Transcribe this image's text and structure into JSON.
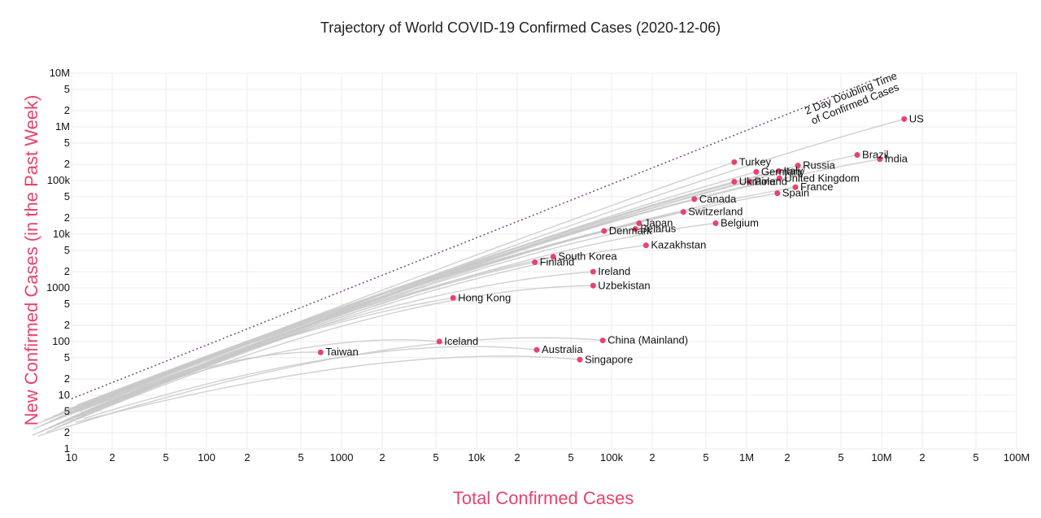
{
  "chart_data": {
    "type": "scatter",
    "title": "Trajectory of World COVID-19 Confirmed Cases (2020-12-06)",
    "xlabel": "Total Confirmed Cases",
    "ylabel": "New Confirmed Cases (in the Past Week)",
    "xscale": "log",
    "yscale": "log",
    "xlim": [
      10,
      100000000
    ],
    "ylim": [
      1,
      10000000
    ],
    "grid": true,
    "x_ticks": [
      "10",
      "2",
      "5",
      "100",
      "2",
      "5",
      "1000",
      "2",
      "5",
      "10k",
      "2",
      "5",
      "100k",
      "2",
      "5",
      "1M",
      "2",
      "5",
      "10M",
      "2",
      "5",
      "100M"
    ],
    "y_ticks": [
      "1",
      "2",
      "5",
      "10",
      "2",
      "5",
      "100",
      "2",
      "5",
      "1000",
      "2",
      "5",
      "10k",
      "2",
      "5",
      "100k",
      "2",
      "5",
      "1M",
      "2",
      "5",
      "10M"
    ],
    "reference_line": {
      "label_line1": "2 Day Doubling Time",
      "label_line2": "of Confirmed Cases",
      "points": [
        [
          10,
          8.6
        ],
        [
          10000000,
          8600000
        ]
      ]
    },
    "points": [
      {
        "name": "US",
        "x": 14700000,
        "y": 1400000
      },
      {
        "name": "India",
        "x": 9700000,
        "y": 250000
      },
      {
        "name": "Brazil",
        "x": 6600000,
        "y": 300000
      },
      {
        "name": "Russia",
        "x": 2400000,
        "y": 190000
      },
      {
        "name": "France",
        "x": 2300000,
        "y": 75000
      },
      {
        "name": "United Kingdom",
        "x": 1750000,
        "y": 110000
      },
      {
        "name": "Italy",
        "x": 1730000,
        "y": 150000
      },
      {
        "name": "Spain",
        "x": 1690000,
        "y": 58000
      },
      {
        "name": "Germany",
        "x": 1180000,
        "y": 145000
      },
      {
        "name": "Turkey",
        "x": 810000,
        "y": 220000
      },
      {
        "name": "Poland",
        "x": 1050000,
        "y": 95000
      },
      {
        "name": "Ukraine",
        "x": 810000,
        "y": 95000
      },
      {
        "name": "Canada",
        "x": 410000,
        "y": 45000
      },
      {
        "name": "Switzerland",
        "x": 340000,
        "y": 26000
      },
      {
        "name": "Belgium",
        "x": 590000,
        "y": 16000
      },
      {
        "name": "Japan",
        "x": 160000,
        "y": 16000
      },
      {
        "name": "Belarus",
        "x": 150000,
        "y": 12500
      },
      {
        "name": "Denmark",
        "x": 88000,
        "y": 11500
      },
      {
        "name": "Kazakhstan",
        "x": 180000,
        "y": 6200
      },
      {
        "name": "South Korea",
        "x": 37000,
        "y": 3800
      },
      {
        "name": "Finland",
        "x": 27000,
        "y": 3000
      },
      {
        "name": "Ireland",
        "x": 73000,
        "y": 2000
      },
      {
        "name": "Uzbekistan",
        "x": 73000,
        "y": 1100
      },
      {
        "name": "Hong Kong",
        "x": 6700,
        "y": 650
      },
      {
        "name": "China (Mainland)",
        "x": 86000,
        "y": 105
      },
      {
        "name": "Iceland",
        "x": 5300,
        "y": 100
      },
      {
        "name": "Australia",
        "x": 27900,
        "y": 70
      },
      {
        "name": "Taiwan",
        "x": 700,
        "y": 63
      },
      {
        "name": "Singapore",
        "x": 58200,
        "y": 46
      }
    ],
    "colors": {
      "point": "#e8436b",
      "trajectory": "#c8c8c8",
      "reference_line": "#7b4a86",
      "axis_title": "#e8436b",
      "grid": "#ececec"
    }
  }
}
